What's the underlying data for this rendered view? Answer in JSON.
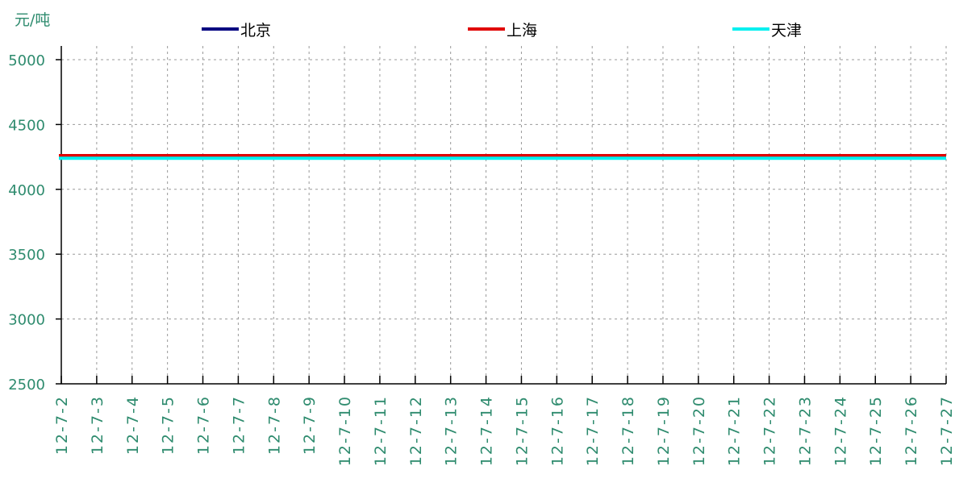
{
  "unit_label": "元/吨",
  "colors": {
    "axis_text": "#2e8b6e",
    "grid": "#999999",
    "axis": "#000000"
  },
  "chart_data": {
    "type": "line",
    "ylabel": "元/吨",
    "ylim": [
      2500,
      5000
    ],
    "yticks": [
      2500,
      3000,
      3500,
      4000,
      4500,
      5000
    ],
    "grid": true,
    "legend_position": "top",
    "x": [
      "12-7-2",
      "12-7-3",
      "12-7-4",
      "12-7-5",
      "12-7-6",
      "12-7-7",
      "12-7-8",
      "12-7-9",
      "12-7-10",
      "12-7-11",
      "12-7-12",
      "12-7-13",
      "12-7-14",
      "12-7-15",
      "12-7-16",
      "12-7-17",
      "12-7-18",
      "12-7-19",
      "12-7-20",
      "12-7-21",
      "12-7-22",
      "12-7-23",
      "12-7-24",
      "12-7-25",
      "12-7-26",
      "12-7-27"
    ],
    "series": [
      {
        "name": "北京",
        "color": "#000080",
        "values": [
          4260,
          4260,
          4260,
          4260,
          4260,
          4260,
          4260,
          4260,
          4260,
          4260,
          4260,
          4260,
          4260,
          4260,
          4260,
          4260,
          4260,
          4260,
          4260,
          4260,
          4260,
          4260,
          4260,
          4260,
          4260,
          4260
        ]
      },
      {
        "name": "上海",
        "color": "#e00000",
        "values": [
          4260,
          4260,
          4260,
          4260,
          4260,
          4260,
          4260,
          4260,
          4260,
          4260,
          4260,
          4260,
          4260,
          4260,
          4260,
          4260,
          4260,
          4260,
          4260,
          4260,
          4260,
          4260,
          4260,
          4260,
          4260,
          4260
        ]
      },
      {
        "name": "天津",
        "color": "#00f0f0",
        "values": [
          4240,
          4240,
          4240,
          4240,
          4240,
          4240,
          4240,
          4240,
          4240,
          4240,
          4240,
          4240,
          4240,
          4240,
          4240,
          4240,
          4240,
          4240,
          4240,
          4240,
          4240,
          4240,
          4240,
          4240,
          4240,
          4240
        ]
      }
    ]
  }
}
